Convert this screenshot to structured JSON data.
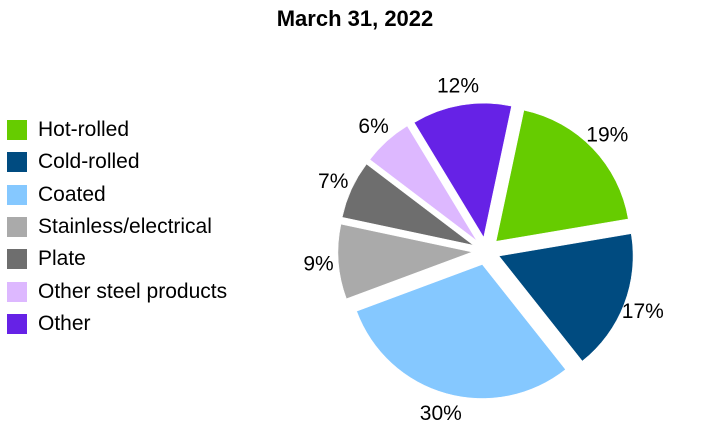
{
  "chart_data": {
    "type": "pie",
    "title": "March 31, 2022",
    "legend_position": "left",
    "exploded": true,
    "slices": [
      {
        "label": "Hot-rolled",
        "value": 19,
        "value_label": "19%",
        "color": "#66CC00"
      },
      {
        "label": "Cold-rolled",
        "value": 17,
        "value_label": "17%",
        "color": "#004B80"
      },
      {
        "label": "Coated",
        "value": 30,
        "value_label": "30%",
        "color": "#85C8FF"
      },
      {
        "label": "Stainless/electrical",
        "value": 9,
        "value_label": "9%",
        "color": "#AAAAAA"
      },
      {
        "label": "Plate",
        "value": 7,
        "value_label": "7%",
        "color": "#6E6E6E"
      },
      {
        "label": "Other steel products",
        "value": 6,
        "value_label": "6%",
        "color": "#DDB8FF"
      },
      {
        "label": "Other",
        "value": 12,
        "value_label": "12%",
        "color": "#6622E6"
      }
    ]
  }
}
